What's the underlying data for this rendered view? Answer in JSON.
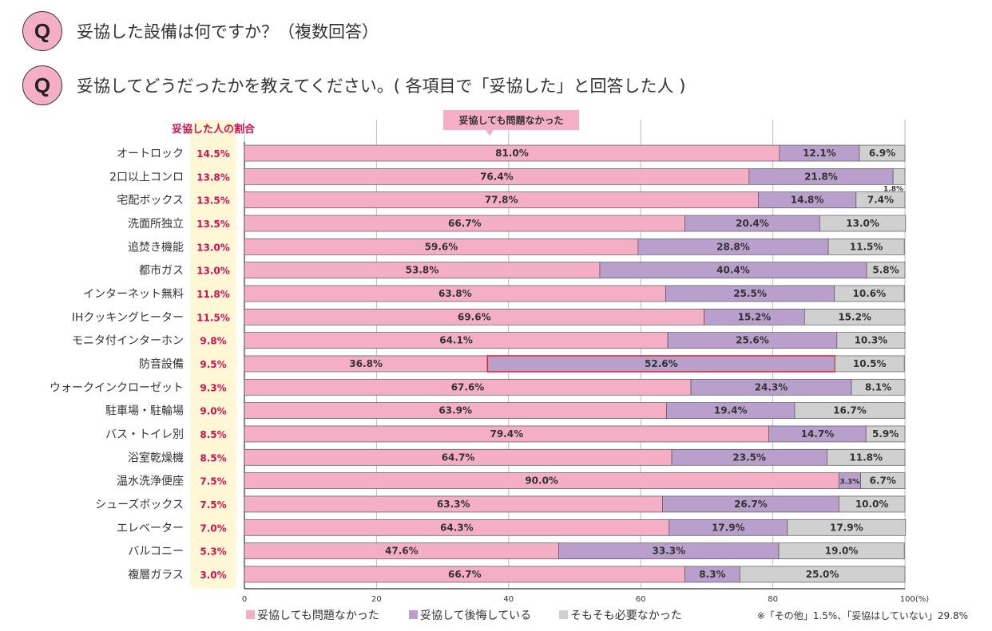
{
  "questions": [
    {
      "badge": "Q",
      "text": "妥協した設備は何ですか？（複数回答）"
    },
    {
      "badge": "Q",
      "text": "妥協してどうだったかを教えてください。( 各項目で「妥協した」と回答した人 )"
    }
  ],
  "chart_data": {
    "type": "bar",
    "orientation": "horizontal-stacked-100",
    "share_column_title": "妥協した人の割合",
    "annotation": "妥協しても問題なかった",
    "categories": [
      "オートロック",
      "2口以上コンロ",
      "宅配ボックス",
      "洗面所独立",
      "追焚き機能",
      "都市ガス",
      "インターネット無料",
      "IHクッキングヒーター",
      "モニタ付インターホン",
      "防音設備",
      "ウォークインクローゼット",
      "駐車場・駐輪場",
      "バス・トイレ別",
      "浴室乾燥機",
      "温水洗浄便座",
      "シューズボックス",
      "エレベーター",
      "バルコニー",
      "複層ガラス"
    ],
    "share": [
      "14.5%",
      "13.8%",
      "13.5%",
      "13.5%",
      "13.0%",
      "13.0%",
      "11.8%",
      "11.5%",
      "9.8%",
      "9.5%",
      "9.3%",
      "9.0%",
      "8.5%",
      "8.5%",
      "7.5%",
      "7.5%",
      "7.0%",
      "5.3%",
      "3.0%"
    ],
    "highlight": {
      "category": "防音設備",
      "series": "妥協して後悔している"
    },
    "series": [
      {
        "name": "妥協しても問題なかった",
        "color": "#f4aec6",
        "values": [
          81.0,
          76.4,
          77.8,
          66.7,
          59.6,
          53.8,
          63.8,
          69.6,
          64.1,
          36.8,
          67.6,
          63.9,
          79.4,
          64.7,
          90.0,
          63.3,
          64.3,
          47.6,
          66.7
        ]
      },
      {
        "name": "妥協して後悔している",
        "color": "#b9a0cc",
        "values": [
          12.1,
          21.8,
          14.8,
          20.4,
          28.8,
          40.4,
          25.5,
          15.2,
          25.6,
          52.6,
          24.3,
          19.4,
          14.7,
          23.5,
          3.3,
          26.7,
          17.9,
          33.3,
          8.3
        ]
      },
      {
        "name": "そもそも必要なかった",
        "color": "#d0d0d0",
        "values": [
          6.9,
          1.8,
          7.4,
          13.0,
          11.5,
          5.8,
          10.6,
          15.2,
          10.3,
          10.5,
          8.1,
          16.7,
          5.9,
          11.8,
          6.7,
          10.0,
          17.9,
          19.0,
          25.0
        ]
      }
    ],
    "xlim": [
      0,
      100
    ],
    "xticks": [
      "0",
      "20",
      "40",
      "60",
      "80",
      "100(%)"
    ],
    "legend_position": "bottom",
    "footnote": "※「その他」1.5%、「妥協はしていない」29.8%"
  }
}
